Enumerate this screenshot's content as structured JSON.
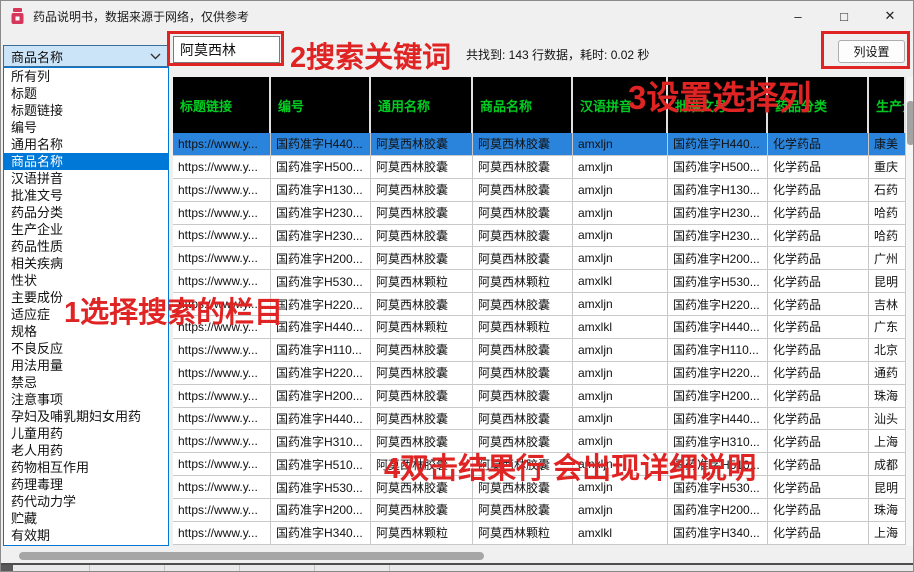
{
  "window": {
    "title": "药品说明书，数据来源于网络，仅供参考",
    "icon": "medicine-bottle-icon",
    "controls": {
      "minimize": "–",
      "maximize": "□",
      "close": "✕"
    }
  },
  "toolbar": {
    "column_select": {
      "value": "商品名称"
    },
    "search": {
      "value": "阿莫西林"
    },
    "status": "共找到: 143 行数据，耗时: 0.02 秒",
    "column_settings_label": "列设置"
  },
  "dropdown": {
    "selected": "商品名称",
    "items": [
      "所有列",
      "标题",
      "标题链接",
      "编号",
      "通用名称",
      "商品名称",
      "汉语拼音",
      "批准文号",
      "药品分类",
      "生产企业",
      "药品性质",
      "相关疾病",
      "性状",
      "主要成份",
      "适应症",
      "规格",
      "不良反应",
      "用法用量",
      "禁忌",
      "注意事项",
      "孕妇及哺乳期妇女用药",
      "儿童用药",
      "老人用药",
      "药物相互作用",
      "药理毒理",
      "药代动力学",
      "贮藏",
      "有效期"
    ]
  },
  "table": {
    "headers": [
      "标题链接",
      "编号",
      "通用名称",
      "商品名称",
      "汉语拼音",
      "批准文号",
      "药品分类",
      "生产企业"
    ],
    "selected_row_index": 0,
    "rows": [
      [
        "https://www.y...",
        "国药准字H440...",
        "阿莫西林胶囊",
        "阿莫西林胶囊",
        "amxljn",
        "国药准字H440...",
        "化学药品",
        "康美"
      ],
      [
        "https://www.y...",
        "国药准字H500...",
        "阿莫西林胶囊",
        "阿莫西林胶囊",
        "amxljn",
        "国药准字H500...",
        "化学药品",
        "重庆"
      ],
      [
        "https://www.y...",
        "国药准字H130...",
        "阿莫西林胶囊",
        "阿莫西林胶囊",
        "amxljn",
        "国药准字H130...",
        "化学药品",
        "石药"
      ],
      [
        "https://www.y...",
        "国药准字H230...",
        "阿莫西林胶囊",
        "阿莫西林胶囊",
        "amxljn",
        "国药准字H230...",
        "化学药品",
        "哈药"
      ],
      [
        "https://www.y...",
        "国药准字H230...",
        "阿莫西林胶囊",
        "阿莫西林胶囊",
        "amxljn",
        "国药准字H230...",
        "化学药品",
        "哈药"
      ],
      [
        "https://www.y...",
        "国药准字H200...",
        "阿莫西林胶囊",
        "阿莫西林胶囊",
        "amxljn",
        "国药准字H200...",
        "化学药品",
        "广州"
      ],
      [
        "https://www.y...",
        "国药准字H530...",
        "阿莫西林颗粒",
        "阿莫西林颗粒",
        "amxlkl",
        "国药准字H530...",
        "化学药品",
        "昆明"
      ],
      [
        "https://www.y...",
        "国药准字H220...",
        "阿莫西林胶囊",
        "阿莫西林胶囊",
        "amxljn",
        "国药准字H220...",
        "化学药品",
        "吉林"
      ],
      [
        "https://www.y...",
        "国药准字H440...",
        "阿莫西林颗粒",
        "阿莫西林颗粒",
        "amxlkl",
        "国药准字H440...",
        "化学药品",
        "广东"
      ],
      [
        "https://www.y...",
        "国药准字H110...",
        "阿莫西林胶囊",
        "阿莫西林胶囊",
        "amxljn",
        "国药准字H110...",
        "化学药品",
        "北京"
      ],
      [
        "https://www.y...",
        "国药准字H220...",
        "阿莫西林胶囊",
        "阿莫西林胶囊",
        "amxljn",
        "国药准字H220...",
        "化学药品",
        "通药"
      ],
      [
        "https://www.y...",
        "国药准字H200...",
        "阿莫西林胶囊",
        "阿莫西林胶囊",
        "amxljn",
        "国药准字H200...",
        "化学药品",
        "珠海"
      ],
      [
        "https://www.y...",
        "国药准字H440...",
        "阿莫西林胶囊",
        "阿莫西林胶囊",
        "amxljn",
        "国药准字H440...",
        "化学药品",
        "汕头"
      ],
      [
        "https://www.y...",
        "国药准字H310...",
        "阿莫西林胶囊",
        "阿莫西林胶囊",
        "amxljn",
        "国药准字H310...",
        "化学药品",
        "上海"
      ],
      [
        "https://www.y...",
        "国药准字H510...",
        "阿莫西林胶囊",
        "阿莫西林胶囊",
        "amxljn",
        "国药准字H510...",
        "化学药品",
        "成都"
      ],
      [
        "https://www.y...",
        "国药准字H530...",
        "阿莫西林胶囊",
        "阿莫西林胶囊",
        "amxljn",
        "国药准字H530...",
        "化学药品",
        "昆明"
      ],
      [
        "https://www.y...",
        "国药准字H200...",
        "阿莫西林胶囊",
        "阿莫西林胶囊",
        "amxljn",
        "国药准字H200...",
        "化学药品",
        "珠海"
      ],
      [
        "https://www.y...",
        "国药准字H340...",
        "阿莫西林颗粒",
        "阿莫西林颗粒",
        "amxlkl",
        "国药准字H340...",
        "化学药品",
        "上海"
      ]
    ]
  },
  "annotations": {
    "step1": "1选择搜索的栏目",
    "step2": "2搜索关键词",
    "step3": "3设置选择列",
    "step4": "4双击结果行 会出现详细说明"
  },
  "colors": {
    "annotation_red": "#e02424",
    "header_bg": "#000000",
    "header_text": "#00cc22",
    "row_selection": "#2b84db",
    "list_selection": "#0078d7",
    "combo_bg": "#cce4f7"
  }
}
